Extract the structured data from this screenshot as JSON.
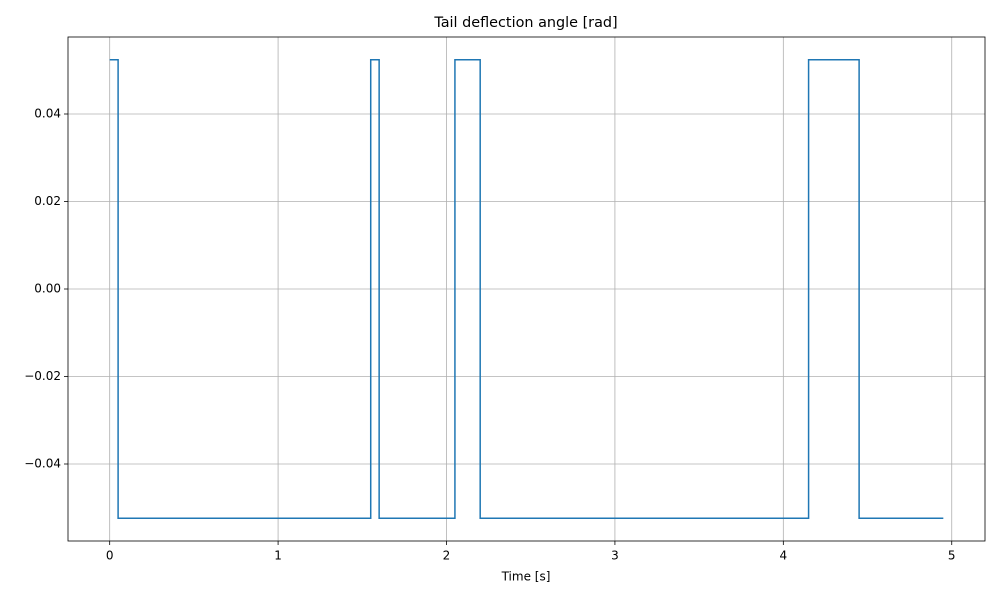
{
  "chart_data": {
    "type": "line",
    "title": "Tail deflection angle [rad]",
    "xlabel": "Time [s]",
    "series": [
      {
        "color": "#1f77b4",
        "x": [
          0,
          0.05,
          0.05,
          1.55,
          1.55,
          1.6,
          1.6,
          2.05,
          2.05,
          2.2,
          2.2,
          4.15,
          4.15,
          4.45,
          4.45,
          4.95
        ],
        "values": [
          0.0524,
          0.0524,
          -0.0524,
          -0.0524,
          0.0524,
          0.0524,
          -0.0524,
          -0.0524,
          0.0524,
          0.0524,
          -0.0524,
          -0.0524,
          0.0524,
          0.0524,
          -0.0524,
          -0.0524
        ]
      }
    ],
    "xlim": [
      -0.2475,
      5.1975
    ],
    "xticks": [
      0,
      1,
      2,
      3,
      4,
      5
    ],
    "ylim": [
      -0.0576,
      0.0576
    ],
    "yticks": [
      {
        "value": -0.04,
        "label": "−0.04"
      },
      {
        "value": -0.02,
        "label": "−0.02"
      },
      {
        "value": 0,
        "label": "0.00"
      },
      0.02,
      0.04
    ],
    "grid": true
  }
}
